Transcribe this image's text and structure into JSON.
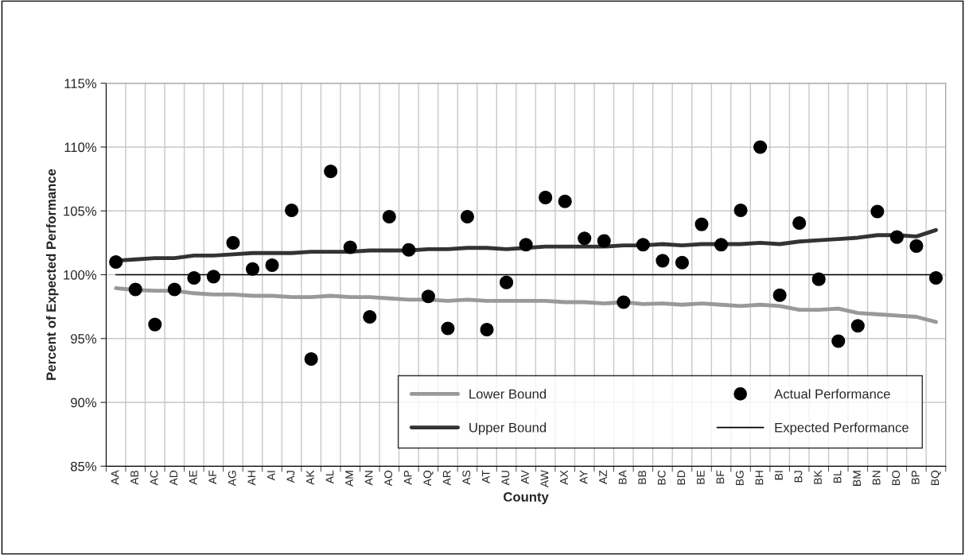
{
  "chart_data": {
    "type": "line",
    "xlabel": "County",
    "ylabel": "Percent of Expected Performance",
    "categories": [
      "AA",
      "AB",
      "AC",
      "AD",
      "AE",
      "AF",
      "AG",
      "AH",
      "AI",
      "AJ",
      "AK",
      "AL",
      "AM",
      "AN",
      "AO",
      "AP",
      "AQ",
      "AR",
      "AS",
      "AT",
      "AU",
      "AV",
      "AW",
      "AX",
      "AY",
      "AZ",
      "BA",
      "BB",
      "BC",
      "BD",
      "BE",
      "BF",
      "BG",
      "BH",
      "BI",
      "BJ",
      "BK",
      "BL",
      "BM",
      "BN",
      "BO",
      "BP",
      "BQ"
    ],
    "series": [
      {
        "name": "Lower Bound",
        "color": "#999999",
        "values": [
          98.95,
          98.8,
          98.75,
          98.75,
          98.55,
          98.45,
          98.45,
          98.35,
          98.35,
          98.25,
          98.25,
          98.35,
          98.25,
          98.25,
          98.15,
          98.05,
          98.05,
          97.95,
          98.05,
          97.95,
          97.95,
          97.95,
          97.95,
          97.85,
          97.85,
          97.75,
          97.85,
          97.7,
          97.75,
          97.65,
          97.75,
          97.65,
          97.55,
          97.65,
          97.55,
          97.25,
          97.25,
          97.35,
          97.0,
          96.9,
          96.8,
          96.7,
          96.3
        ]
      },
      {
        "name": "Upper Bound",
        "color": "#333333",
        "values": [
          101.1,
          101.2,
          101.3,
          101.3,
          101.5,
          101.5,
          101.6,
          101.7,
          101.7,
          101.7,
          101.8,
          101.8,
          101.8,
          101.9,
          101.9,
          101.9,
          102.0,
          102.0,
          102.1,
          102.1,
          102.0,
          102.1,
          102.2,
          102.2,
          102.2,
          102.2,
          102.3,
          102.3,
          102.4,
          102.3,
          102.4,
          102.4,
          102.4,
          102.5,
          102.4,
          102.6,
          102.7,
          102.8,
          102.9,
          103.1,
          103.1,
          103.0,
          103.5
        ]
      },
      {
        "name": "Actual Performance",
        "type": "scatter",
        "marker": "circle",
        "color": "#000000",
        "values": [
          101.0,
          98.85,
          96.1,
          98.85,
          99.75,
          99.85,
          102.5,
          100.45,
          100.75,
          105.05,
          93.4,
          108.1,
          102.15,
          96.7,
          104.55,
          101.95,
          98.3,
          95.8,
          104.55,
          95.7,
          99.4,
          102.35,
          106.05,
          105.75,
          102.85,
          102.65,
          97.85,
          102.35,
          101.1,
          100.95,
          103.95,
          102.35,
          105.05,
          110.0,
          98.4,
          104.05,
          99.65,
          94.8,
          96.0,
          104.95,
          102.95,
          102.25,
          99.75
        ]
      },
      {
        "name": "Expected Performance",
        "color": "#000000",
        "values": [
          100,
          100,
          100,
          100,
          100,
          100,
          100,
          100,
          100,
          100,
          100,
          100,
          100,
          100,
          100,
          100,
          100,
          100,
          100,
          100,
          100,
          100,
          100,
          100,
          100,
          100,
          100,
          100,
          100,
          100,
          100,
          100,
          100,
          100,
          100,
          100,
          100,
          100,
          100,
          100,
          100,
          100,
          100
        ]
      }
    ],
    "ylim": [
      85,
      115
    ],
    "yticks": [
      {
        "value": 85,
        "label": "85%"
      },
      {
        "value": 90,
        "label": "90%"
      },
      {
        "value": 95,
        "label": "95%"
      },
      {
        "value": 100,
        "label": "100%"
      },
      {
        "value": 105,
        "label": "105%"
      },
      {
        "value": 110,
        "label": "110%"
      },
      {
        "value": 115,
        "label": "115%"
      }
    ],
    "grid": true,
    "legend": "bottom right"
  }
}
